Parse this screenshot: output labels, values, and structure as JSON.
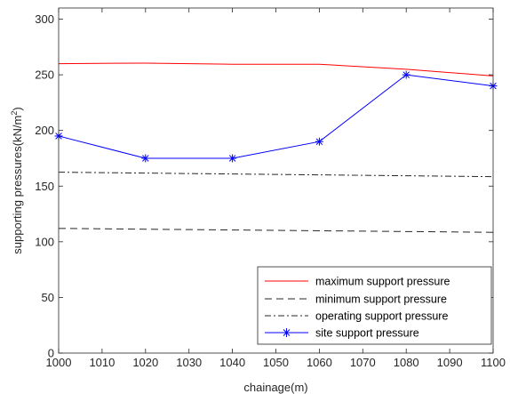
{
  "chart_data": {
    "type": "line",
    "xlabel": "chainage(m)",
    "ylabel_main": "supporting pressures(kN/m",
    "ylabel_sup": "2",
    "ylabel_tail": ")",
    "xlim": [
      1000,
      1100
    ],
    "ylim": [
      0,
      310
    ],
    "x_ticks": [
      1000,
      1010,
      1020,
      1030,
      1040,
      1050,
      1060,
      1070,
      1080,
      1090,
      1100
    ],
    "y_ticks": [
      0,
      50,
      100,
      150,
      200,
      250,
      300
    ],
    "grid": false,
    "legend_position": "bottom-right",
    "series": [
      {
        "name": "maximum support pressure",
        "style": "solid",
        "color": "#ff0000",
        "marker": "none",
        "x": [
          1000,
          1020,
          1040,
          1060,
          1080,
          1100
        ],
        "y": [
          260,
          260.5,
          259.5,
          259.5,
          255,
          249
        ]
      },
      {
        "name": "minimum support pressure",
        "style": "dashed",
        "color": "#262626",
        "marker": "none",
        "x": [
          1000,
          1100
        ],
        "y": [
          112,
          108.5
        ]
      },
      {
        "name": "operating support pressure",
        "style": "dashdot",
        "color": "#262626",
        "marker": "none",
        "x": [
          1000,
          1100
        ],
        "y": [
          162.5,
          158.5
        ]
      },
      {
        "name": "site support pressure",
        "style": "solid",
        "color": "#0000ff",
        "marker": "asterisk",
        "x": [
          1000,
          1020,
          1040,
          1060,
          1080,
          1100
        ],
        "y": [
          195,
          175,
          175,
          190,
          250,
          240
        ]
      }
    ]
  }
}
